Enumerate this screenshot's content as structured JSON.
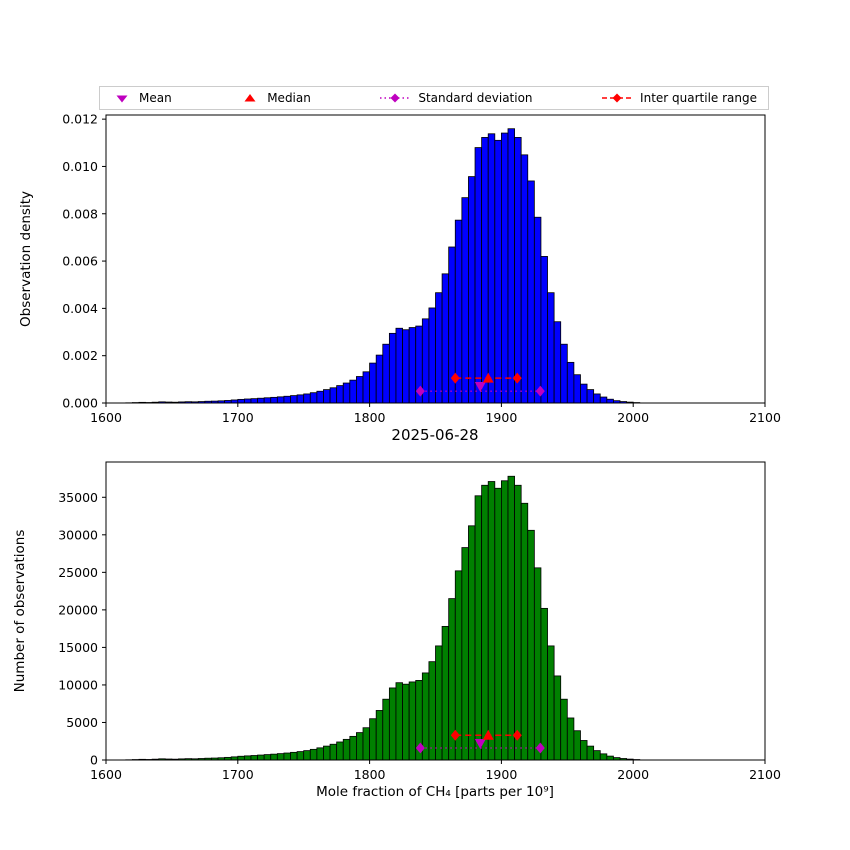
{
  "figure": {
    "date_label": "2025-06-28",
    "xlabel": "Mole fraction of CH₄ [parts per 10⁹]"
  },
  "legend": {
    "items": [
      {
        "label": "Mean",
        "marker": "triangle-down",
        "color": "#bf00bf"
      },
      {
        "label": "Median",
        "marker": "triangle-up",
        "color": "#ff0000"
      },
      {
        "label": "Standard deviation",
        "marker": "diamond-dotted-line",
        "color": "#bf00bf"
      },
      {
        "label": "Inter quartile range",
        "marker": "diamond-dashed-line",
        "color": "#ff0000"
      }
    ]
  },
  "stats_overlay": {
    "mean": 1884,
    "median": 1890,
    "std": 45.5,
    "q1": 1865,
    "q3": 1912,
    "mean_color": "#bf00bf",
    "median_color": "#ff0000",
    "heights": [
      {
        "std_line": 0.0005,
        "mean": 0.0007,
        "iqr_line": 0.00105
      },
      {
        "std_line": 1600,
        "mean": 2200,
        "iqr_line": 3300
      }
    ]
  },
  "chart_data": [
    {
      "type": "bar",
      "panel": "top",
      "ylabel": "Observation density",
      "xlabel": "2025-06-28",
      "bar_color": "#0000ff",
      "edge_color": "#000000",
      "xlim": [
        1600,
        2100
      ],
      "ylim": [
        0,
        0.012175
      ],
      "xticks": [
        1600,
        1700,
        1800,
        1900,
        2000,
        2100
      ],
      "yticks": [
        0,
        0.002,
        0.004,
        0.006,
        0.008,
        0.01,
        0.012
      ],
      "ytick_labels": [
        "0.000",
        "0.002",
        "0.004",
        "0.006",
        "0.008",
        "0.010",
        "0.012"
      ],
      "bin_start": 1600,
      "bin_width": 5,
      "values": [
        0,
        0,
        0,
        9e-06,
        1.8e-05,
        2.8e-05,
        2.1e-05,
        3.4e-05,
        4.9e-05,
        4e-05,
        3.4e-05,
        4.6e-05,
        5.5e-05,
        4.9e-05,
        6.1e-05,
        7.4e-05,
        8e-05,
        9.2e-05,
        0.000107,
        0.000129,
        0.000153,
        0.000169,
        0.000184,
        0.000202,
        0.000221,
        0.000239,
        0.000261,
        0.000285,
        0.000313,
        0.000344,
        0.000383,
        0.000436,
        0.000497,
        0.000567,
        0.000644,
        0.000736,
        0.000844,
        0.000966,
        0.00112,
        0.001319,
        0.001687,
        0.002025,
        0.002485,
        0.002945,
        0.00316,
        0.003098,
        0.00319,
        0.003252,
        0.003558,
        0.004018,
        0.004663,
        0.00546,
        0.006595,
        0.00773,
        0.008681,
        0.009571,
        0.010798,
        0.011227,
        0.011381,
        0.011104,
        0.011411,
        0.011595,
        0.011227,
        0.010491,
        0.009387,
        0.007853,
        0.006196,
        0.004663,
        0.003436,
        0.002485,
        0.001718,
        0.001196,
        0.000798,
        0.000567,
        0.000383,
        0.000252,
        0.00016,
        9.8e-05,
        6.1e-05,
        3.7e-05,
        1.8e-05
      ]
    },
    {
      "type": "bar",
      "panel": "bottom",
      "ylabel": "Number of observations",
      "xlabel": "Mole fraction of CH₄ [parts per 10⁹]",
      "bar_color": "#008000",
      "edge_color": "#000000",
      "xlim": [
        1600,
        2100
      ],
      "ylim": [
        0,
        39700
      ],
      "xticks": [
        1600,
        1700,
        1800,
        1900,
        2000,
        2100
      ],
      "yticks": [
        0,
        5000,
        10000,
        15000,
        20000,
        25000,
        30000,
        35000
      ],
      "ytick_labels": [
        "0",
        "5000",
        "10000",
        "15000",
        "20000",
        "25000",
        "30000",
        "35000"
      ],
      "bin_start": 1600,
      "bin_width": 5,
      "values": [
        0,
        0,
        0,
        30,
        60,
        90,
        70,
        110,
        160,
        130,
        110,
        150,
        180,
        160,
        200,
        240,
        260,
        300,
        350,
        420,
        500,
        550,
        600,
        660,
        720,
        780,
        850,
        930,
        1020,
        1120,
        1250,
        1420,
        1620,
        1850,
        2100,
        2400,
        2750,
        3150,
        3650,
        4300,
        5500,
        6600,
        8100,
        9600,
        10300,
        10100,
        10400,
        10600,
        11600,
        13100,
        15200,
        17800,
        21500,
        25200,
        28300,
        31200,
        35200,
        36600,
        37100,
        36200,
        37200,
        37800,
        36600,
        34200,
        30600,
        25600,
        20200,
        15200,
        11200,
        8100,
        5600,
        3900,
        2600,
        1850,
        1250,
        820,
        520,
        320,
        200,
        120,
        60
      ]
    }
  ]
}
